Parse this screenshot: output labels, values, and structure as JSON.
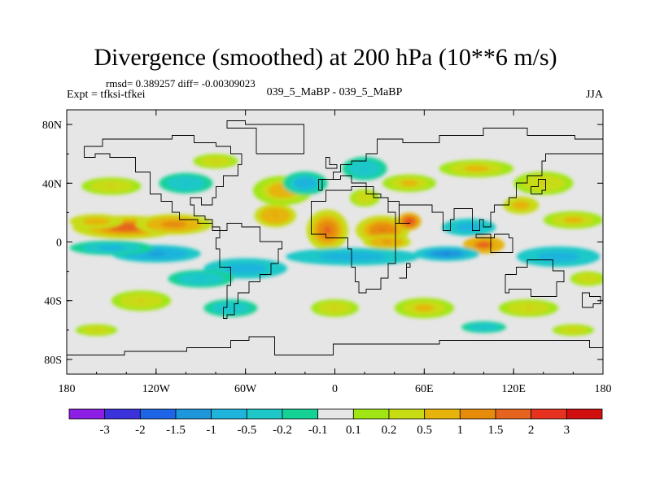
{
  "chart_data": {
    "type": "heatmap",
    "title": "Divergence (smoothed) at 200 hPa (10**6 m/s)",
    "subtitle_left": "rmsd= 0.389257 diff= -0.00309023",
    "subtitle_center": "039_5_MaBP - 039_5_MaBP",
    "left_label": "Expt = tfksi-tfkei",
    "right_label": "JJA",
    "x_range": [
      -180,
      180
    ],
    "y_range": [
      -90,
      90
    ],
    "x_ticks": [
      {
        "value": -180,
        "label": "180"
      },
      {
        "value": -120,
        "label": "120W"
      },
      {
        "value": -60,
        "label": "60W"
      },
      {
        "value": 0,
        "label": "0"
      },
      {
        "value": 60,
        "label": "60E"
      },
      {
        "value": 120,
        "label": "120E"
      },
      {
        "value": 180,
        "label": "180"
      }
    ],
    "y_ticks": [
      {
        "value": 80,
        "label": "80N"
      },
      {
        "value": 40,
        "label": "40N"
      },
      {
        "value": 0,
        "label": "0"
      },
      {
        "value": -40,
        "label": "40S"
      },
      {
        "value": -80,
        "label": "80S"
      }
    ],
    "colorbar": {
      "levels": [
        "-3",
        "-2",
        "-1.5",
        "-1",
        "-0.5",
        "-0.2",
        "-0.1",
        "0.1",
        "0.2",
        "0.5",
        "1",
        "1.5",
        "2",
        "3"
      ],
      "colors": [
        "#8c1ee6",
        "#3c32dc",
        "#1e64e6",
        "#1e96dc",
        "#1eb4dc",
        "#1ec8c8",
        "#14d296",
        "#e6e6e6",
        "#a0e614",
        "#c8dc14",
        "#e6b40a",
        "#e68c0a",
        "#e6641e",
        "#e6321e",
        "#d20f0f"
      ]
    },
    "field_blobs": [
      {
        "lon": -140,
        "lat": 10,
        "rx": 36,
        "ry": 8,
        "val": 1.7
      },
      {
        "lon": -108,
        "lat": 12,
        "rx": 26,
        "ry": 7,
        "val": 1.2
      },
      {
        "lon": -160,
        "lat": 14,
        "rx": 18,
        "ry": 5,
        "val": 0.9
      },
      {
        "lon": -120,
        "lat": -8,
        "rx": 30,
        "ry": 6,
        "val": -1.1
      },
      {
        "lon": -150,
        "lat": -4,
        "rx": 28,
        "ry": 5,
        "val": -0.6
      },
      {
        "lon": -60,
        "lat": -18,
        "rx": 28,
        "ry": 7,
        "val": -0.8
      },
      {
        "lon": -90,
        "lat": -25,
        "rx": 22,
        "ry": 6,
        "val": -0.5
      },
      {
        "lon": -5,
        "lat": 8,
        "rx": 14,
        "ry": 14,
        "val": 1.6
      },
      {
        "lon": 32,
        "lat": 8,
        "rx": 18,
        "ry": 10,
        "val": 1.4
      },
      {
        "lon": 50,
        "lat": 14,
        "rx": 8,
        "ry": 6,
        "val": 2.1
      },
      {
        "lon": 35,
        "lat": 0,
        "rx": 16,
        "ry": 5,
        "val": 1.1
      },
      {
        "lon": 100,
        "lat": -2,
        "rx": 14,
        "ry": 6,
        "val": 1.8
      },
      {
        "lon": 12,
        "lat": -10,
        "rx": 45,
        "ry": 6,
        "val": -0.9
      },
      {
        "lon": 75,
        "lat": -8,
        "rx": 22,
        "ry": 5,
        "val": -1.4
      },
      {
        "lon": 90,
        "lat": 10,
        "rx": 18,
        "ry": 6,
        "val": -0.9
      },
      {
        "lon": 150,
        "lat": -10,
        "rx": 28,
        "ry": 7,
        "val": -0.9
      },
      {
        "lon": -35,
        "lat": 35,
        "rx": 20,
        "ry": 10,
        "val": 0.7
      },
      {
        "lon": -40,
        "lat": 18,
        "rx": 14,
        "ry": 8,
        "val": 1.0
      },
      {
        "lon": -20,
        "lat": 40,
        "rx": 15,
        "ry": 8,
        "val": -0.7
      },
      {
        "lon": 20,
        "lat": 50,
        "rx": 15,
        "ry": 8,
        "val": -0.5
      },
      {
        "lon": 50,
        "lat": 40,
        "rx": 18,
        "ry": 6,
        "val": 0.6
      },
      {
        "lon": 95,
        "lat": 50,
        "rx": 25,
        "ry": 6,
        "val": 0.6
      },
      {
        "lon": 140,
        "lat": 40,
        "rx": 20,
        "ry": 8,
        "val": 0.5
      },
      {
        "lon": 160,
        "lat": 15,
        "rx": 20,
        "ry": 6,
        "val": 0.6
      },
      {
        "lon": -150,
        "lat": 38,
        "rx": 20,
        "ry": 6,
        "val": 0.5
      },
      {
        "lon": -100,
        "lat": 40,
        "rx": 18,
        "ry": 7,
        "val": -0.5
      },
      {
        "lon": -80,
        "lat": 55,
        "rx": 15,
        "ry": 5,
        "val": 0.5
      },
      {
        "lon": -130,
        "lat": -40,
        "rx": 20,
        "ry": 7,
        "val": 0.5
      },
      {
        "lon": -70,
        "lat": -45,
        "rx": 18,
        "ry": 6,
        "val": -0.5
      },
      {
        "lon": 0,
        "lat": -45,
        "rx": 16,
        "ry": 6,
        "val": 0.5
      },
      {
        "lon": 60,
        "lat": -45,
        "rx": 20,
        "ry": 7,
        "val": 0.6
      },
      {
        "lon": 130,
        "lat": -45,
        "rx": 20,
        "ry": 6,
        "val": 0.5
      },
      {
        "lon": -160,
        "lat": -60,
        "rx": 14,
        "ry": 4,
        "val": 0.5
      },
      {
        "lon": 100,
        "lat": -58,
        "rx": 15,
        "ry": 4,
        "val": -0.5
      },
      {
        "lon": 160,
        "lat": -60,
        "rx": 14,
        "ry": 4,
        "val": 0.5
      },
      {
        "lon": 20,
        "lat": 30,
        "rx": 10,
        "ry": 6,
        "val": 0.5
      },
      {
        "lon": 125,
        "lat": 25,
        "rx": 12,
        "ry": 6,
        "val": 0.8
      },
      {
        "lon": 170,
        "lat": -25,
        "rx": 12,
        "ry": 5,
        "val": 0.5
      }
    ],
    "coastlines": [
      [
        [
          -168,
          65
        ],
        [
          -155,
          71
        ],
        [
          -130,
          70
        ],
        [
          -110,
          72
        ],
        [
          -95,
          68
        ],
        [
          -80,
          64
        ],
        [
          -70,
          60
        ],
        [
          -62,
          52
        ],
        [
          -66,
          44
        ],
        [
          -75,
          38
        ],
        [
          -80,
          30
        ],
        [
          -82,
          25
        ],
        [
          -90,
          29
        ],
        [
          -97,
          25
        ],
        [
          -95,
          18
        ],
        [
          -88,
          15
        ],
        [
          -83,
          10
        ],
        [
          -78,
          8
        ],
        [
          -82,
          12
        ],
        [
          -92,
          16
        ],
        [
          -105,
          20
        ],
        [
          -110,
          28
        ],
        [
          -117,
          33
        ],
        [
          -124,
          40
        ],
        [
          -124,
          48
        ],
        [
          -135,
          58
        ],
        [
          -150,
          60
        ],
        [
          -160,
          58
        ],
        [
          -168,
          65
        ]
      ],
      [
        [
          -78,
          8
        ],
        [
          -72,
          12
        ],
        [
          -62,
          10
        ],
        [
          -50,
          0
        ],
        [
          -35,
          -5
        ],
        [
          -38,
          -15
        ],
        [
          -42,
          -23
        ],
        [
          -50,
          -28
        ],
        [
          -57,
          -35
        ],
        [
          -65,
          -42
        ],
        [
          -68,
          -50
        ],
        [
          -73,
          -53
        ],
        [
          -75,
          -45
        ],
        [
          -72,
          -30
        ],
        [
          -70,
          -18
        ],
        [
          -78,
          -5
        ],
        [
          -80,
          2
        ],
        [
          -78,
          8
        ]
      ],
      [
        [
          -17,
          15
        ],
        [
          -17,
          28
        ],
        [
          -6,
          36
        ],
        [
          10,
          37
        ],
        [
          20,
          32
        ],
        [
          32,
          31
        ],
        [
          35,
          28
        ],
        [
          43,
          12
        ],
        [
          51,
          12
        ],
        [
          40,
          -2
        ],
        [
          40,
          -15
        ],
        [
          35,
          -25
        ],
        [
          30,
          -32
        ],
        [
          20,
          -35
        ],
        [
          17,
          -28
        ],
        [
          13,
          -18
        ],
        [
          12,
          -5
        ],
        [
          9,
          4
        ],
        [
          -5,
          5
        ],
        [
          -15,
          10
        ],
        [
          -17,
          15
        ]
      ],
      [
        [
          -10,
          36
        ],
        [
          -9,
          43
        ],
        [
          -2,
          48
        ],
        [
          5,
          53
        ],
        [
          10,
          56
        ],
        [
          20,
          60
        ],
        [
          28,
          70
        ],
        [
          45,
          68
        ],
        [
          70,
          73
        ],
        [
          100,
          77
        ],
        [
          130,
          72
        ],
        [
          160,
          70
        ],
        [
          180,
          68
        ],
        [
          180,
          60
        ],
        [
          160,
          60
        ],
        [
          142,
          55
        ],
        [
          140,
          45
        ],
        [
          130,
          40
        ],
        [
          122,
          40
        ],
        [
          122,
          30
        ],
        [
          118,
          24
        ],
        [
          108,
          20
        ],
        [
          105,
          10
        ],
        [
          100,
          14
        ],
        [
          98,
          8
        ],
        [
          92,
          22
        ],
        [
          88,
          22
        ],
        [
          80,
          15
        ],
        [
          77,
          8
        ],
        [
          72,
          20
        ],
        [
          66,
          25
        ],
        [
          57,
          26
        ],
        [
          52,
          24
        ],
        [
          44,
          13
        ],
        [
          40,
          20
        ],
        [
          35,
          30
        ],
        [
          27,
          37
        ],
        [
          20,
          40
        ],
        [
          12,
          44
        ],
        [
          5,
          43
        ],
        [
          -10,
          36
        ]
      ],
      [
        [
          114,
          -22
        ],
        [
          122,
          -18
        ],
        [
          130,
          -12
        ],
        [
          137,
          -12
        ],
        [
          142,
          -11
        ],
        [
          146,
          -19
        ],
        [
          153,
          -28
        ],
        [
          150,
          -37
        ],
        [
          140,
          -38
        ],
        [
          131,
          -32
        ],
        [
          118,
          -35
        ],
        [
          114,
          -26
        ],
        [
          114,
          -22
        ]
      ],
      [
        [
          -52,
          60
        ],
        [
          -45,
          60
        ],
        [
          -20,
          70
        ],
        [
          -20,
          80
        ],
        [
          -60,
          82
        ],
        [
          -72,
          78
        ],
        [
          -52,
          60
        ]
      ],
      [
        [
          -180,
          -78
        ],
        [
          -140,
          -75
        ],
        [
          -100,
          -72
        ],
        [
          -70,
          -68
        ],
        [
          -58,
          -64
        ],
        [
          -40,
          -77
        ],
        [
          0,
          -70
        ],
        [
          40,
          -69
        ],
        [
          70,
          -68
        ],
        [
          100,
          -66
        ],
        [
          140,
          -66
        ],
        [
          170,
          -72
        ],
        [
          180,
          -78
        ]
      ],
      [
        [
          95,
          5
        ],
        [
          105,
          -6
        ],
        [
          115,
          -8
        ],
        [
          120,
          2
        ],
        [
          118,
          6
        ],
        [
          108,
          3
        ],
        [
          95,
          5
        ]
      ],
      [
        [
          131,
          33
        ],
        [
          140,
          36
        ],
        [
          142,
          42
        ],
        [
          137,
          38
        ],
        [
          131,
          33
        ]
      ],
      [
        [
          44,
          -25
        ],
        [
          48,
          -15
        ],
        [
          50,
          -17
        ],
        [
          47,
          -25
        ],
        [
          44,
          -25
        ]
      ],
      [
        [
          -5,
          50
        ],
        [
          2,
          52
        ],
        [
          -3,
          58
        ],
        [
          -6,
          56
        ],
        [
          -5,
          50
        ]
      ],
      [
        [
          167,
          -45
        ],
        [
          174,
          -41
        ],
        [
          178,
          -37
        ],
        [
          172,
          -35
        ],
        [
          167,
          -45
        ]
      ]
    ]
  }
}
